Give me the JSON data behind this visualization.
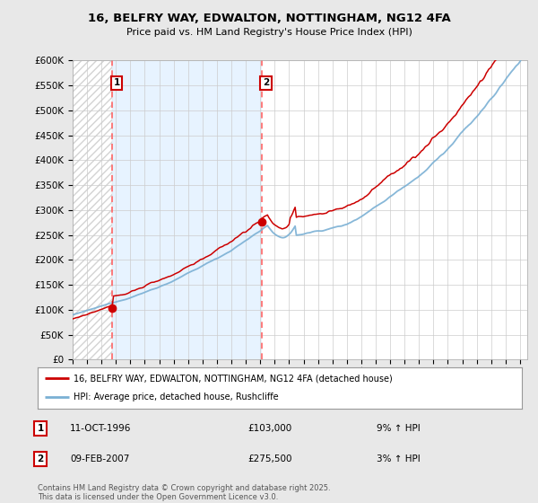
{
  "title": "16, BELFRY WAY, EDWALTON, NOTTINGHAM, NG12 4FA",
  "subtitle": "Price paid vs. HM Land Registry's House Price Index (HPI)",
  "legend_label1": "16, BELFRY WAY, EDWALTON, NOTTINGHAM, NG12 4FA (detached house)",
  "legend_label2": "HPI: Average price, detached house, Rushcliffe",
  "sale1_date": "11-OCT-1996",
  "sale1_price": 103000,
  "sale1_hpi": "9% ↑ HPI",
  "sale2_date": "09-FEB-2007",
  "sale2_price": 275500,
  "sale2_hpi": "3% ↑ HPI",
  "footer": "Contains HM Land Registry data © Crown copyright and database right 2025.\nThis data is licensed under the Open Government Licence v3.0.",
  "color_property": "#cc0000",
  "color_hpi": "#7ab0d4",
  "color_sale_marker": "#cc0000",
  "color_dashed": "#ff6666",
  "color_shade": "#ddeeff",
  "ylim": [
    0,
    600000
  ],
  "yticks": [
    0,
    50000,
    100000,
    150000,
    200000,
    250000,
    300000,
    350000,
    400000,
    450000,
    500000,
    550000,
    600000
  ],
  "background_color": "#e8e8e8",
  "plot_bg": "#ffffff"
}
